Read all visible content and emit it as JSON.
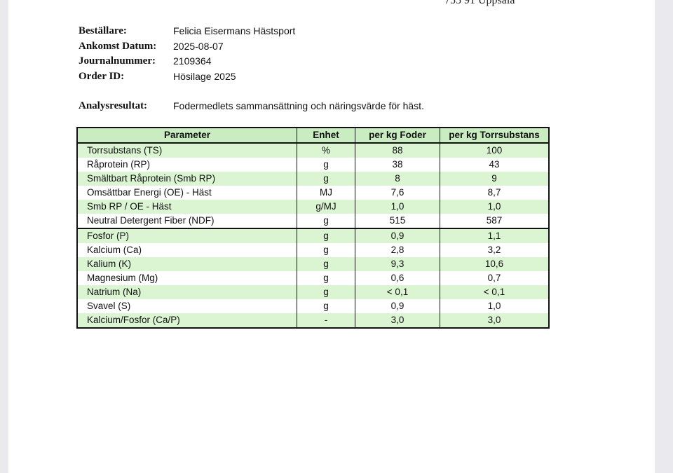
{
  "header": {
    "address_fragment": "755 91 Uppsala"
  },
  "meta": [
    {
      "label": "Beställare:",
      "value": "Felicia Eisermans Hästsport"
    },
    {
      "label": "Ankomst Datum:",
      "value": "2025-08-07"
    },
    {
      "label": "Journalnummer:",
      "value": "2109364"
    },
    {
      "label": "Order ID:",
      "value": "Hösilage 2025"
    }
  ],
  "analysis": {
    "label": "Analysresultat:",
    "value": "Fodermedlets sammansättning och näringsvärde för häst."
  },
  "table": {
    "columns": [
      "Parameter",
      "Enhet",
      "per kg Foder",
      "per kg Torrsubstans"
    ],
    "rows": [
      [
        "Torrsubstans  (TS)",
        "%",
        "88",
        "100"
      ],
      [
        "Råprotein  (RP)",
        "g",
        "38",
        "43"
      ],
      [
        "Smältbart Råprotein  (Smb RP)",
        "g",
        "8",
        "9"
      ],
      [
        "Omsättbar Energi (OE) - Häst",
        "MJ",
        "7,6",
        "8,7"
      ],
      [
        "Smb RP / OE - Häst",
        "g/MJ",
        "1,0",
        "1,0"
      ],
      [
        "Neutral Detergent Fiber  (NDF)",
        "g",
        "515",
        "587"
      ],
      [
        "Fosfor  (P)",
        "g",
        "0,9",
        "1,1"
      ],
      [
        "Kalcium  (Ca)",
        "g",
        "2,8",
        "3,2"
      ],
      [
        "Kalium  (K)",
        "g",
        "9,3",
        "10,6"
      ],
      [
        "Magnesium  (Mg)",
        "g",
        "0,6",
        "0,7"
      ],
      [
        "Natrium  (Na)",
        "g",
        "< 0,1",
        "< 0,1"
      ],
      [
        "Svavel  (S)",
        "g",
        "0,9",
        "1,0"
      ],
      [
        "Kalcium/Fosfor  (Ca/P)",
        "-",
        "3,0",
        "3,0"
      ]
    ]
  },
  "colors": {
    "header_green": "#c9ecc0",
    "row_green": "#dbf5d3"
  }
}
